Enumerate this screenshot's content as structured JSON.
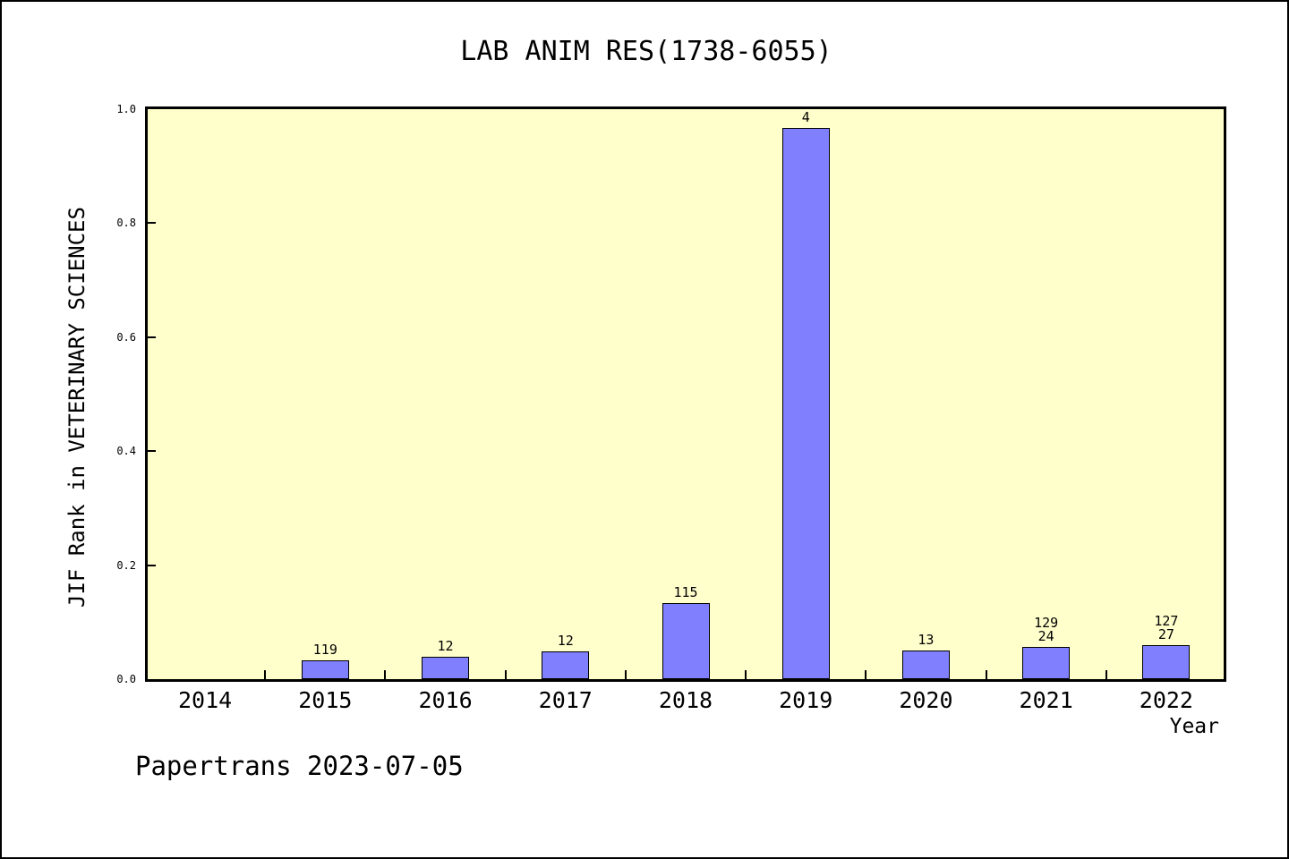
{
  "footer": "Papertrans 2023-07-05",
  "chart_data": {
    "type": "bar",
    "title": "LAB ANIM RES(1738-6055)",
    "xlabel": "Year",
    "ylabel": "JIF Rank in VETERINARY SCIENCES",
    "categories": [
      "2014",
      "2015",
      "2016",
      "2017",
      "2018",
      "2019",
      "2020",
      "2021",
      "2022"
    ],
    "values": [
      null,
      0.033,
      0.04,
      0.048,
      0.133,
      0.967,
      0.051,
      0.057,
      0.059
    ],
    "bar_labels": [
      [],
      [
        "119"
      ],
      [
        "12"
      ],
      [
        "12"
      ],
      [
        "115"
      ],
      [
        "4"
      ],
      [
        "13"
      ],
      [
        "129",
        "24"
      ],
      [
        "127",
        "27"
      ]
    ],
    "ylim": [
      0.0,
      1.0
    ],
    "yticks": [
      "0.0",
      "0.2",
      "0.4",
      "0.6",
      "0.8",
      "1.0"
    ],
    "grid": false,
    "legend": "none",
    "bar_color": "#8080ff",
    "bar_edge_color": "#000000",
    "plot_bg_color": "#ffffcc",
    "frame_color": "#000000"
  }
}
